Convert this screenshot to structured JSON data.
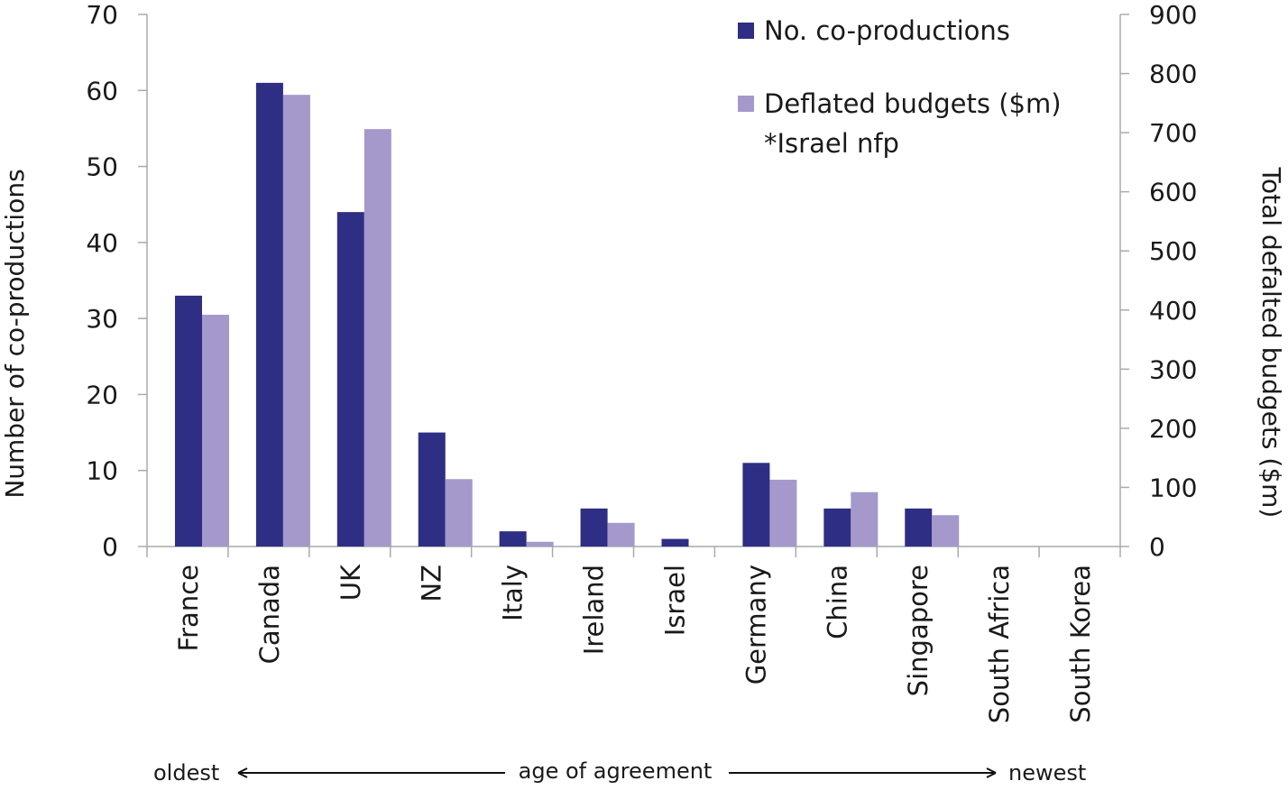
{
  "chart_data": {
    "type": "bar",
    "categories": [
      "France",
      "Canada",
      "UK",
      "NZ",
      "Italy",
      "Ireland",
      "Israel",
      "Germany",
      "China",
      "Singapore",
      "South Africa",
      "South Korea"
    ],
    "series": [
      {
        "name": "No. co-productions",
        "axis": "left",
        "color": "#2e2e84",
        "values": [
          33,
          61,
          44,
          15,
          2,
          5,
          1,
          11,
          5,
          5,
          0,
          0
        ]
      },
      {
        "name": "Deflated budgets ($m)",
        "axis": "right",
        "color": "#a599cb",
        "values": [
          392,
          764,
          706,
          114,
          8,
          40,
          null,
          113,
          92,
          53,
          0,
          0
        ]
      }
    ],
    "ylabel": "Number of co-productions",
    "ylabel_right": "Total defalted budgets ($m)",
    "ylim": [
      0,
      70
    ],
    "ylim_right": [
      0,
      900
    ],
    "yticks": [
      0,
      10,
      20,
      30,
      40,
      50,
      60,
      70
    ],
    "yticks_right": [
      0,
      100,
      200,
      300,
      400,
      500,
      600,
      700,
      800,
      900
    ],
    "legend_note": "*Israel nfp",
    "legend_position": "top-right",
    "grid": false,
    "annotation": {
      "left": "oldest",
      "center": "age of agreement",
      "right": "newest"
    }
  }
}
